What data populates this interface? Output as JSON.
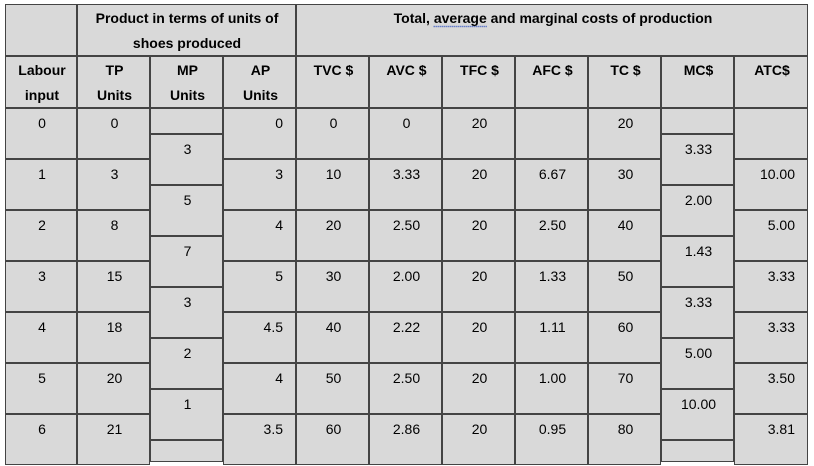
{
  "group_headers": {
    "product": [
      "Product in terms of units of",
      "shoes produced"
    ],
    "costs_prefix": "Total, ",
    "costs_underlined": "average",
    "costs_suffix": " and marginal costs of production"
  },
  "columns": [
    {
      "key": "labour",
      "line1": "Labour",
      "line2": "input"
    },
    {
      "key": "tp",
      "line1": "TP",
      "line2": "Units"
    },
    {
      "key": "mp",
      "line1": "MP",
      "line2": "Units"
    },
    {
      "key": "ap",
      "line1": "AP",
      "line2": "Units"
    },
    {
      "key": "tvc",
      "line1": "TVC $",
      "line2": ""
    },
    {
      "key": "avc",
      "line1": "AVC $",
      "line2": ""
    },
    {
      "key": "tfc",
      "line1": "TFC $",
      "line2": ""
    },
    {
      "key": "afc",
      "line1": "AFC $",
      "line2": ""
    },
    {
      "key": "tc",
      "line1": "TC $",
      "line2": ""
    },
    {
      "key": "mc",
      "line1": "MC$",
      "line2": ""
    },
    {
      "key": "atc",
      "line1": "ATC$",
      "line2": ""
    }
  ],
  "rows": [
    {
      "labour": "0",
      "tp": "0",
      "ap": "0",
      "tvc": "0",
      "avc": "0",
      "tfc": "20",
      "afc": "",
      "tc": "20",
      "atc": ""
    },
    {
      "labour": "1",
      "tp": "3",
      "ap": "3",
      "tvc": "10",
      "avc": "3.33",
      "tfc": "20",
      "afc": "6.67",
      "tc": "30",
      "atc": "10.00"
    },
    {
      "labour": "2",
      "tp": "8",
      "ap": "4",
      "tvc": "20",
      "avc": "2.50",
      "tfc": "20",
      "afc": "2.50",
      "tc": "40",
      "atc": "5.00"
    },
    {
      "labour": "3",
      "tp": "15",
      "ap": "5",
      "tvc": "30",
      "avc": "2.00",
      "tfc": "20",
      "afc": "1.33",
      "tc": "50",
      "atc": "3.33"
    },
    {
      "labour": "4",
      "tp": "18",
      "ap": "4.5",
      "tvc": "40",
      "avc": "2.22",
      "tfc": "20",
      "afc": "1.11",
      "tc": "60",
      "atc": "3.33"
    },
    {
      "labour": "5",
      "tp": "20",
      "ap": "4",
      "tvc": "50",
      "avc": "2.50",
      "tfc": "20",
      "afc": "1.00",
      "tc": "70",
      "atc": "3.50"
    },
    {
      "labour": "6",
      "tp": "21",
      "ap": "3.5",
      "tvc": "60",
      "avc": "2.86",
      "tfc": "20",
      "afc": "0.95",
      "tc": "80",
      "atc": "3.81"
    }
  ],
  "mp_values": [
    "3",
    "5",
    "7",
    "3",
    "2",
    "1"
  ],
  "mc_values": [
    "3.33",
    "2.00",
    "1.43",
    "3.33",
    "5.00",
    "10.00"
  ]
}
